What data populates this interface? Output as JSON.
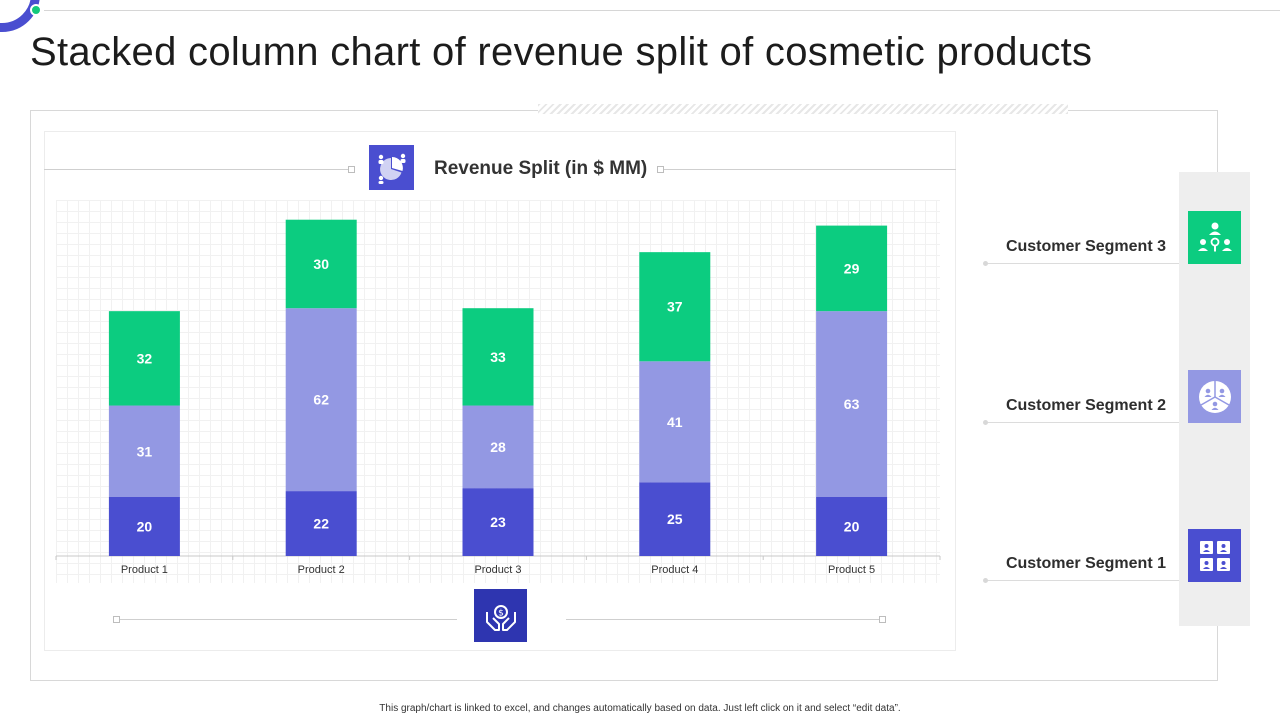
{
  "page": {
    "title": "Stacked column chart of revenue split of cosmetic products",
    "footer": "This graph/chart is linked to excel, and changes automatically based on data. Just left click on it and select “edit data”."
  },
  "colors": {
    "segment_1": "#4a4ed0",
    "segment_2": "#9398e3",
    "segment_3": "#0ccc80",
    "accent_dark": "#2e35b0",
    "bar_label": "#ffffff"
  },
  "icons": {
    "header": "chart-people-icon",
    "bottom": "hands-money-icon",
    "segment_3": "team-network-icon",
    "segment_2": "pie-chart-people-icon",
    "segment_1": "user-grid-icon"
  },
  "segments": [
    {
      "label": "Customer Segment 3"
    },
    {
      "label": "Customer Segment 2"
    },
    {
      "label": "Customer Segment 1"
    }
  ],
  "chart_data": {
    "type": "bar",
    "stacked": true,
    "title": "Revenue Split (in $ MM)",
    "xlabel": "",
    "ylabel": "",
    "ylim": [
      0,
      120
    ],
    "categories": [
      "Product 1",
      "Product 2",
      "Product 3",
      "Product 4",
      "Product 5"
    ],
    "series": [
      {
        "name": "Customer Segment 1",
        "values": [
          20,
          22,
          23,
          25,
          20
        ]
      },
      {
        "name": "Customer Segment 2",
        "values": [
          31,
          62,
          28,
          41,
          63
        ]
      },
      {
        "name": "Customer Segment 3",
        "values": [
          32,
          30,
          33,
          37,
          29
        ]
      }
    ],
    "legend": "right"
  }
}
